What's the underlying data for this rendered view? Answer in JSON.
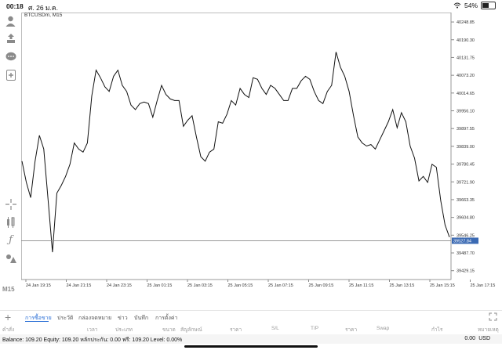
{
  "status_bar": {
    "time": "00:18",
    "date": "ศ. 26 ม.ค.",
    "battery": "54%",
    "battery_level": 0.54
  },
  "left_toolbar": {
    "icons": [
      "person-icon",
      "buy-sell-icon",
      "chat-icon",
      "new-order-icon",
      "crosshair-icon",
      "indicators-icon",
      "function-icon",
      "objects-icon"
    ],
    "timeframe": "M15"
  },
  "chart": {
    "symbol_label": "BTCUSDm, M15",
    "current_price": "39527.84"
  },
  "chart_data": {
    "type": "line",
    "title": "BTCUSDm, M15",
    "y_ticks": [
      "40248.85",
      "40190.30",
      "40131.75",
      "40073.20",
      "40014.65",
      "39956.10",
      "39897.55",
      "39839.00",
      "39780.45",
      "39721.90",
      "39663.35",
      "39604.80",
      "39546.25",
      "39487.70",
      "39429.15"
    ],
    "x_ticks": [
      "24 Jan 19:15",
      "24 Jan 21:15",
      "24 Jan 23:15",
      "25 Jan 01:15",
      "25 Jan 03:15",
      "25 Jan 05:15",
      "25 Jan 07:15",
      "25 Jan 09:15",
      "25 Jan 11:15",
      "25 Jan 13:15",
      "25 Jan 15:15",
      "25 Jan 17:15"
    ],
    "ylim": [
      39400,
      40280
    ],
    "current_price": 39527.84,
    "series": [
      {
        "values": [
          39790,
          39720,
          39670,
          39790,
          39875,
          39830,
          39660,
          39490,
          39685,
          39710,
          39740,
          39780,
          39850,
          39830,
          39820,
          39850,
          40005,
          40090,
          40065,
          40035,
          40020,
          40070,
          40090,
          40040,
          40020,
          39975,
          39960,
          39980,
          39985,
          39980,
          39935,
          39990,
          40040,
          40010,
          39995,
          39990,
          39990,
          39905,
          39925,
          39940,
          39870,
          39805,
          39790,
          39820,
          39830,
          39920,
          39915,
          39945,
          39990,
          39975,
          40030,
          40010,
          40000,
          40065,
          40060,
          40030,
          40010,
          40040,
          40030,
          40010,
          39990,
          39990,
          40030,
          40030,
          40055,
          40070,
          40060,
          40020,
          39990,
          39980,
          40020,
          40040,
          40150,
          40100,
          40070,
          40020,
          39940,
          39870,
          39850,
          39840,
          39845,
          39830,
          39860,
          39890,
          39920,
          39960,
          39900,
          39950,
          39920,
          39840,
          39800,
          39725,
          39740,
          39720,
          39780,
          39770,
          39660,
          39580,
          39540
        ]
      }
    ]
  },
  "bottom_tabs": {
    "plus": "+",
    "items": [
      "การซื้อขาย",
      "ประวัติ",
      "กล่องจดหมาย",
      "ข่าว",
      "บันทึก",
      "การตั้งค่า"
    ]
  },
  "columns": [
    "คำสั่ง",
    "เวลา",
    "ประเภท",
    "ขนาด",
    "สัญลักษณ์",
    "ราคา",
    "S/L",
    "T/P",
    "ราคา",
    "Swap",
    "กำไร",
    "หมายเหตุ"
  ],
  "balance_bar": {
    "text": "Balance: 109.20 Equity: 109.20 หลักประกัน: 0.00 ฟรี: 109.20 Level: 0.00%",
    "profit": "0.00",
    "currency": "USD"
  }
}
